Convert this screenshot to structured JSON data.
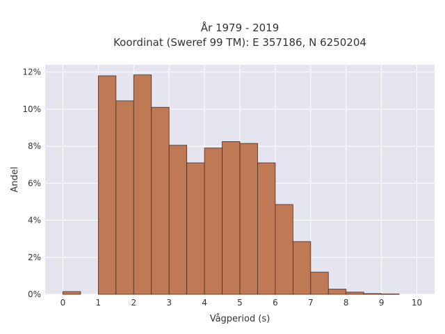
{
  "chart_data": {
    "type": "bar",
    "title_line1": "År 1979 - 2019",
    "title_line2": "Koordinat (Sweref 99 TM): E 357186, N 6250204",
    "xlabel": "Vågperiod (s)",
    "ylabel": "Andel",
    "bin_width": 0.5,
    "bins": [
      {
        "x0": 0.0,
        "value": 0.15
      },
      {
        "x0": 0.5,
        "value": 0.0
      },
      {
        "x0": 1.0,
        "value": 11.8
      },
      {
        "x0": 1.5,
        "value": 10.45
      },
      {
        "x0": 2.0,
        "value": 11.85
      },
      {
        "x0": 2.5,
        "value": 10.1
      },
      {
        "x0": 3.0,
        "value": 8.05
      },
      {
        "x0": 3.5,
        "value": 7.1
      },
      {
        "x0": 4.0,
        "value": 7.9
      },
      {
        "x0": 4.5,
        "value": 8.25
      },
      {
        "x0": 5.0,
        "value": 8.15
      },
      {
        "x0": 5.5,
        "value": 7.1
      },
      {
        "x0": 6.0,
        "value": 4.85
      },
      {
        "x0": 6.5,
        "value": 2.85
      },
      {
        "x0": 7.0,
        "value": 1.2
      },
      {
        "x0": 7.5,
        "value": 0.28
      },
      {
        "x0": 8.0,
        "value": 0.12
      },
      {
        "x0": 8.5,
        "value": 0.04
      },
      {
        "x0": 9.0,
        "value": 0.02
      }
    ],
    "xlim": [
      -0.5,
      10.5
    ],
    "ylim": [
      0,
      12.4
    ],
    "xticks": [
      0,
      1,
      2,
      3,
      4,
      5,
      6,
      7,
      8,
      9,
      10
    ],
    "yticks": [
      0,
      2,
      4,
      6,
      8,
      10,
      12
    ],
    "ytick_labels": [
      "0%",
      "2%",
      "4%",
      "6%",
      "8%",
      "10%",
      "12%"
    ],
    "grid": true,
    "colors": {
      "bar_fill": "#bf7a55",
      "bar_edge": "#4a2a1c",
      "plot_bg": "#e5e5f0",
      "grid": "#ffffff"
    }
  }
}
